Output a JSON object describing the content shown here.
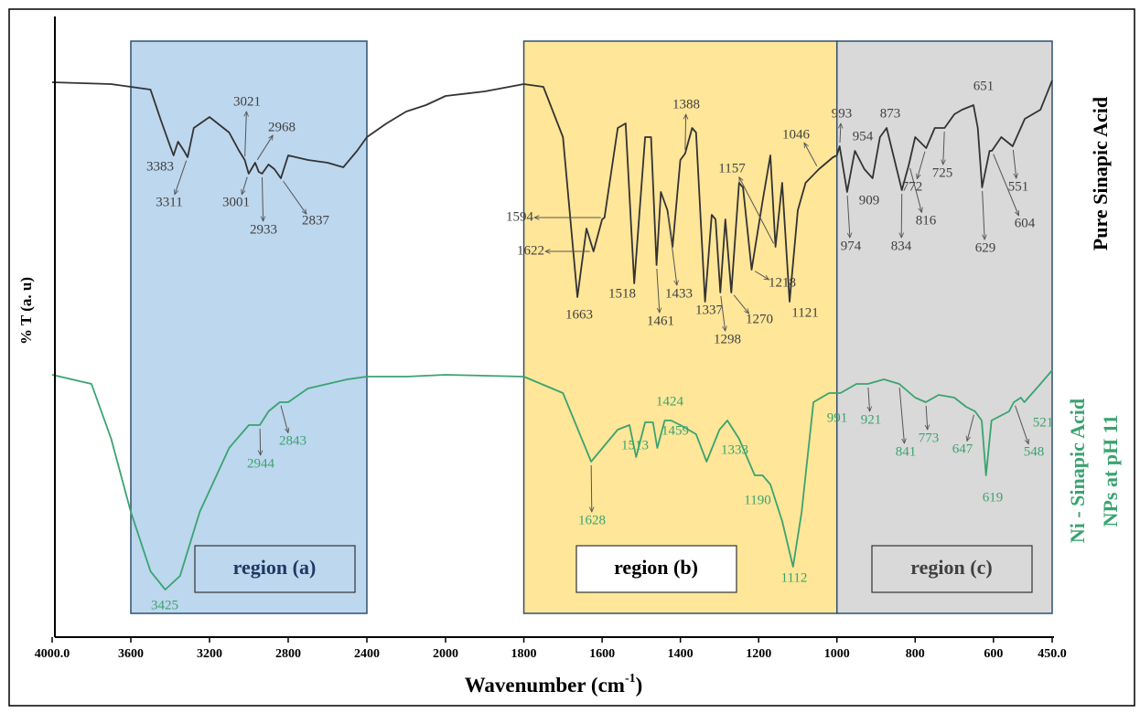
{
  "chart_data": {
    "type": "line",
    "xlabel": [
      "Wavenumber (cm",
      "-1",
      ")"
    ],
    "ylabel": "% T (a. u)",
    "xlim": [
      4000,
      450
    ],
    "ylim": [
      0,
      677
    ],
    "xticks": [
      {
        "value": 4000,
        "label": "4000.0"
      },
      3600,
      3200,
      2800,
      2400,
      2000,
      1800,
      1600,
      1400,
      1200,
      1000,
      800,
      600,
      {
        "value": 450,
        "label": "450.0"
      }
    ],
    "regions": [
      {
        "label": "region (a)",
        "from": 3600,
        "to": 2400,
        "color": "#bdd7ee",
        "text_color": "#1f3864",
        "box_color": "#bdd7ee"
      },
      {
        "label": "region (b)",
        "from": 1800,
        "to": 1000,
        "color": "#ffe699",
        "text_color": "#000000",
        "box_color": "#ffffff"
      },
      {
        "label": "region (c)",
        "from": 1000,
        "to": 450,
        "color": "#d9d9d9",
        "text_color": "#404040",
        "box_color": "#d9d9d9"
      }
    ],
    "series": [
      {
        "name": [
          "Pure Sinapic Acid"
        ],
        "color": "#333333",
        "label_color": "#404040",
        "x": [
          4000,
          3700,
          3600,
          3500,
          3450,
          3400,
          3383,
          3360,
          3330,
          3311,
          3280,
          3200,
          3100,
          3050,
          3021,
          3001,
          2968,
          2950,
          2933,
          2900,
          2870,
          2837,
          2800,
          2700,
          2600,
          2520,
          2450,
          2400,
          2300,
          2200,
          2100,
          2000,
          1900,
          1800,
          1750,
          1700,
          1663,
          1640,
          1622,
          1600,
          1594,
          1560,
          1540,
          1518,
          1490,
          1475,
          1461,
          1450,
          1433,
          1420,
          1400,
          1388,
          1370,
          1360,
          1337,
          1320,
          1310,
          1298,
          1285,
          1270,
          1250,
          1240,
          1218,
          1190,
          1170,
          1157,
          1140,
          1121,
          1100,
          1080,
          1046,
          1010,
          1000,
          993,
          974,
          960,
          954,
          930,
          909,
          890,
          873,
          850,
          834,
          816,
          800,
          772,
          750,
          725,
          700,
          680,
          651,
          640,
          629,
          610,
          604,
          580,
          551,
          520,
          480,
          450
        ],
        "values": [
          607,
          605,
          602,
          599,
          567,
          537,
          527,
          542,
          532,
          525,
          557,
          569,
          552,
          532,
          522,
          507,
          519,
          509,
          507,
          517,
          512,
          502,
          527,
          522,
          519,
          514,
          532,
          547,
          562,
          575,
          582,
          592,
          597,
          605,
          602,
          547,
          372,
          447,
          422,
          457,
          459,
          557,
          562,
          387,
          547,
          547,
          407,
          487,
          467,
          427,
          522,
          529,
          557,
          552,
          367,
          462,
          457,
          377,
          457,
          377,
          497,
          492,
          402,
          477,
          527,
          427,
          497,
          367,
          467,
          497,
          512,
          525,
          527,
          537,
          487,
          519,
          532,
          512,
          502,
          547,
          557,
          517,
          489,
          517,
          547,
          535,
          557,
          557,
          572,
          577,
          582,
          557,
          492,
          532,
          532,
          547,
          537,
          567,
          577,
          609
        ],
        "peaks": [
          3383,
          3311,
          3021,
          2968,
          3001,
          2933,
          2837,
          1594,
          1622,
          1663,
          1518,
          1461,
          1433,
          1388,
          1337,
          1298,
          1270,
          1218,
          1157,
          1046,
          1121,
          993,
          974,
          954,
          909,
          873,
          834,
          816,
          772,
          725,
          651,
          629,
          551,
          604
        ]
      },
      {
        "name": [
          "Ni - Sinapic Acid",
          "NPs at pH 11"
        ],
        "color": "#3aa370",
        "label_color": "#3aa370",
        "x": [
          4000,
          3800,
          3700,
          3600,
          3500,
          3425,
          3350,
          3250,
          3100,
          3000,
          2944,
          2900,
          2843,
          2800,
          2700,
          2600,
          2500,
          2400,
          2200,
          2000,
          1800,
          1700,
          1628,
          1560,
          1530,
          1513,
          1490,
          1470,
          1459,
          1440,
          1424,
          1400,
          1360,
          1333,
          1300,
          1280,
          1250,
          1210,
          1190,
          1170,
          1140,
          1112,
          1090,
          1060,
          1020,
          1000,
          991,
          950,
          921,
          880,
          841,
          800,
          773,
          740,
          700,
          670,
          647,
          630,
          619,
          605,
          560,
          548,
          530,
          521,
          480,
          450
        ],
        "values": [
          287,
          277,
          217,
          137,
          72,
          52,
          67,
          137,
          207,
          232,
          232,
          247,
          257,
          257,
          272,
          277,
          282,
          285,
          285,
          287,
          285,
          267,
          192,
          227,
          232,
          197,
          235,
          235,
          207,
          237,
          237,
          232,
          222,
          192,
          227,
          237,
          217,
          177,
          177,
          167,
          127,
          77,
          137,
          257,
          267,
          267,
          267,
          277,
          277,
          282,
          277,
          262,
          257,
          265,
          262,
          252,
          247,
          237,
          177,
          237,
          247,
          257,
          262,
          257,
          277,
          292
        ],
        "peaks": [
          3425,
          2944,
          2843,
          1628,
          1513,
          1459,
          1424,
          1333,
          1190,
          1112,
          991,
          921,
          841,
          773,
          647,
          619,
          548,
          521
        ]
      }
    ]
  }
}
